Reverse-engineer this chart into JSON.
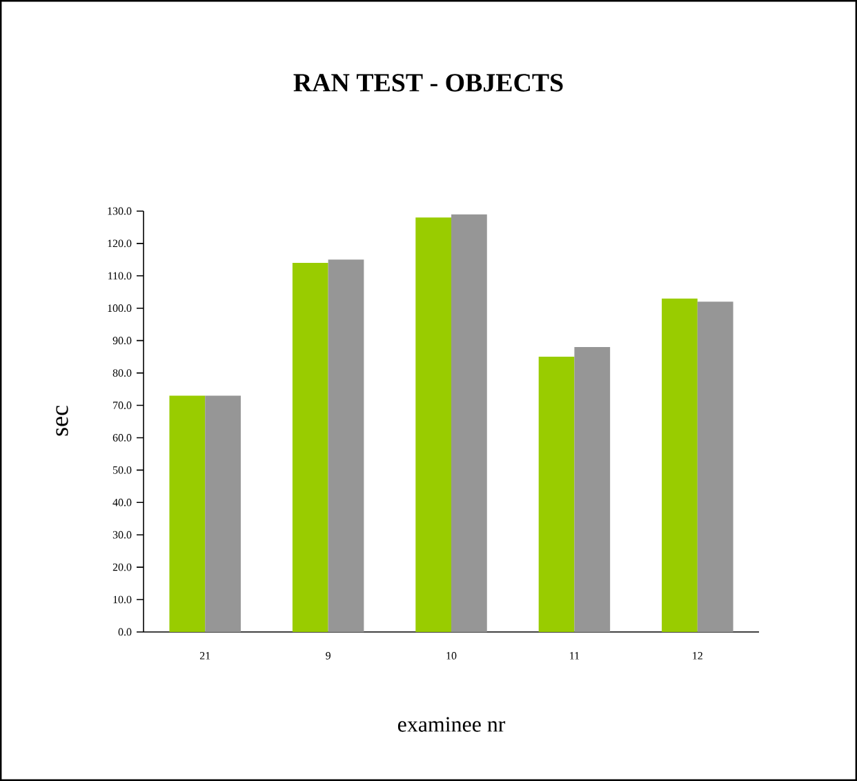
{
  "chart_data": {
    "type": "bar",
    "title": "RAN TEST - OBJECTS",
    "xlabel": "examinee nr",
    "ylabel": "sec",
    "categories": [
      "21",
      "9",
      "10",
      "11",
      "12"
    ],
    "series": [
      {
        "color": "#99cc00",
        "values": [
          73,
          114,
          128,
          85,
          103
        ]
      },
      {
        "color": "#969696",
        "values": [
          73,
          115,
          129,
          88,
          102
        ]
      }
    ],
    "ylim": [
      0,
      130
    ],
    "yticks": [
      {
        "value": 0,
        "label": "0.0"
      },
      {
        "value": 10,
        "label": "10.0"
      },
      {
        "value": 20,
        "label": "20.0"
      },
      {
        "value": 30,
        "label": "30.0"
      },
      {
        "value": 40,
        "label": "40.0"
      },
      {
        "value": 50,
        "label": "50.0"
      },
      {
        "value": 60,
        "label": "60.0"
      },
      {
        "value": 70,
        "label": "70.0"
      },
      {
        "value": 80,
        "label": "80.0"
      },
      {
        "value": 90,
        "label": "90.0"
      },
      {
        "value": 100,
        "label": "100.0"
      },
      {
        "value": 110,
        "label": "110.0"
      },
      {
        "value": 120,
        "label": "120.0"
      },
      {
        "value": 130,
        "label": "130.0"
      }
    ]
  }
}
